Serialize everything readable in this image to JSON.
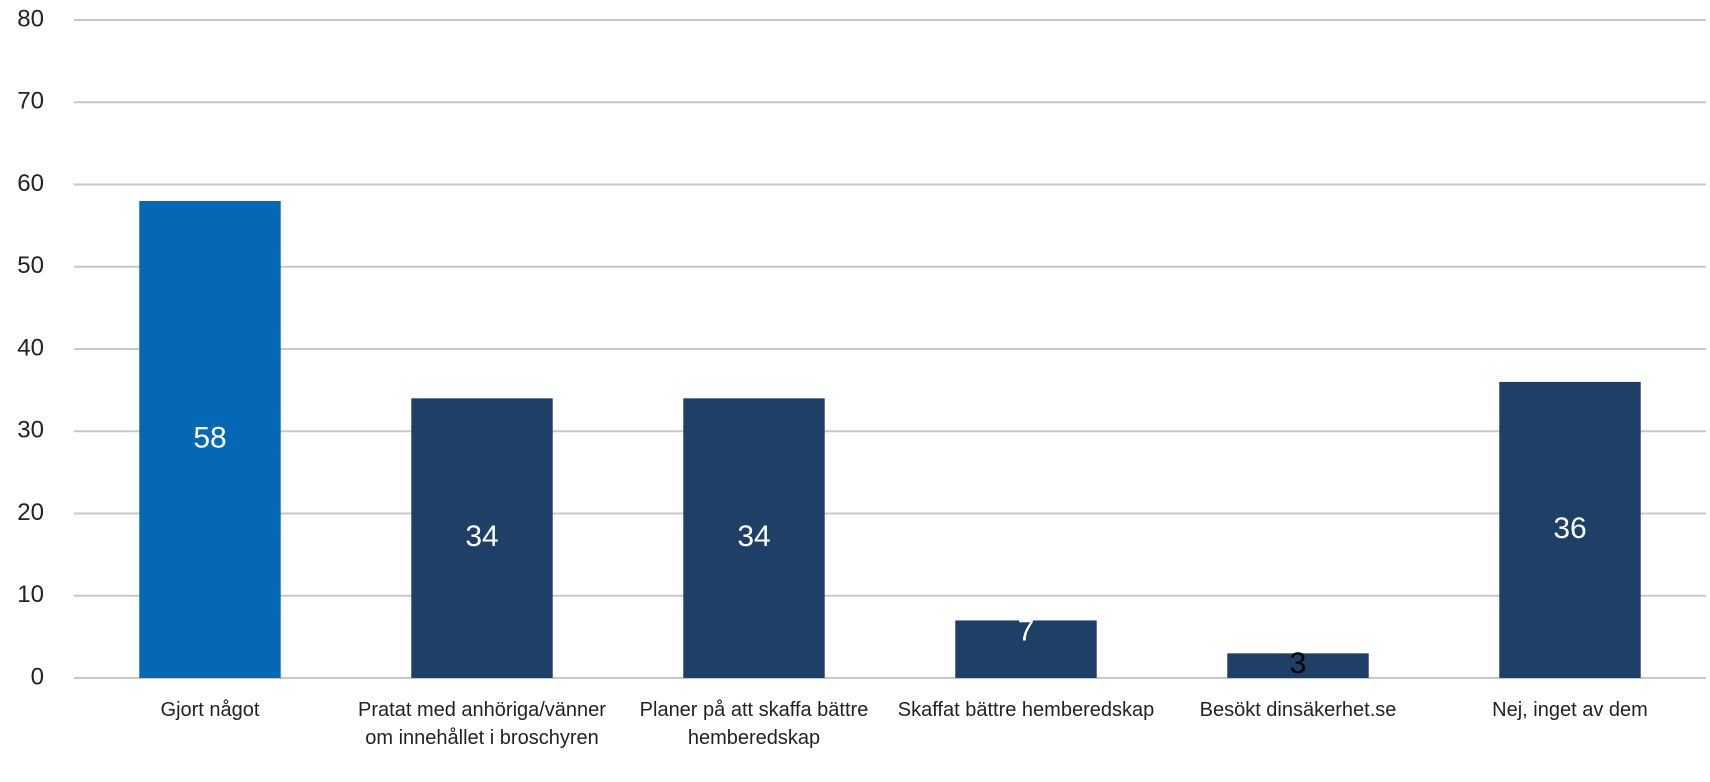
{
  "chart_data": {
    "type": "bar",
    "categories": [
      "Gjort något",
      "Pratat med anhöriga/vänner om innehållet i broschyren",
      "Planer på att skaffa bättre hemberedskap",
      "Skaffat bättre hemberedskap",
      "Besökt dinsäkerhet.se",
      "Nej, inget av dem"
    ],
    "values": [
      58,
      34,
      34,
      7,
      3,
      36
    ],
    "colors": [
      "#0468b4",
      "#1f4066",
      "#1f4066",
      "#1f4066",
      "#1f4066",
      "#1f4066"
    ],
    "label_colors": [
      "#ffffff",
      "#ffffff",
      "#ffffff",
      "#ffffff",
      "#000000",
      "#ffffff"
    ],
    "ylim": [
      0,
      80
    ],
    "yticks": [
      0,
      10,
      20,
      30,
      40,
      50,
      60,
      70,
      80
    ],
    "grid": true
  }
}
